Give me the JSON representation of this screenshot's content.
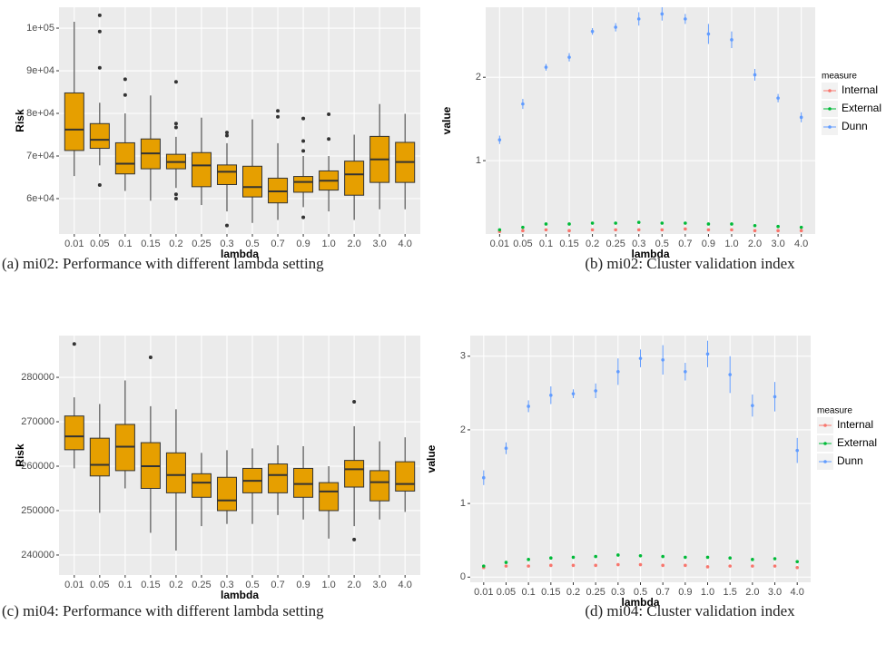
{
  "chart_data": [
    {
      "type": "box",
      "caption": "(a) mi02: Performance with different lambda setting",
      "x_label": "lambda",
      "y_label": "Risk",
      "color": "#e69f00",
      "categories": [
        "0.01",
        "0.05",
        "0.1",
        "0.15",
        "0.2",
        "0.25",
        "0.3",
        "0.5",
        "0.7",
        "0.9",
        "1.0",
        "2.0",
        "3.0",
        "4.0"
      ],
      "ylim": [
        51700,
        104900
      ],
      "yticks": [
        {
          "value": 60000,
          "label": "6e+04"
        },
        {
          "value": 70000,
          "label": "7e+04"
        },
        {
          "value": 80000,
          "label": "8e+04"
        },
        {
          "value": 90000,
          "label": "9e+04"
        },
        {
          "value": 100000,
          "label": "1e+05"
        }
      ],
      "boxes": [
        {
          "whislo": 65300,
          "q1": 71300,
          "med": 76200,
          "q3": 84800,
          "whishi": 101500,
          "fliers": []
        },
        {
          "whislo": 67800,
          "q1": 71800,
          "med": 73800,
          "q3": 77600,
          "whishi": 82500,
          "fliers": [
            103000,
            99200,
            90700,
            63200
          ]
        },
        {
          "whislo": 61800,
          "q1": 65800,
          "med": 68200,
          "q3": 73100,
          "whishi": 80000,
          "fliers": [
            88000,
            84300
          ]
        },
        {
          "whislo": 59500,
          "q1": 67000,
          "med": 70600,
          "q3": 74000,
          "whishi": 84200,
          "fliers": []
        },
        {
          "whislo": 62500,
          "q1": 67000,
          "med": 68600,
          "q3": 70400,
          "whishi": 74500,
          "fliers": [
            87400,
            77600,
            76700,
            61000,
            60000
          ]
        },
        {
          "whislo": 58500,
          "q1": 62800,
          "med": 67800,
          "q3": 70800,
          "whishi": 79000,
          "fliers": []
        },
        {
          "whislo": 57000,
          "q1": 63300,
          "med": 66300,
          "q3": 67900,
          "whishi": 73000,
          "fliers": [
            75500,
            74800,
            53700
          ]
        },
        {
          "whislo": 54300,
          "q1": 60400,
          "med": 62700,
          "q3": 67600,
          "whishi": 78600,
          "fliers": []
        },
        {
          "whislo": 55000,
          "q1": 59000,
          "med": 61700,
          "q3": 64800,
          "whishi": 73000,
          "fliers": [
            80600,
            79200
          ]
        },
        {
          "whislo": 58000,
          "q1": 61500,
          "med": 63900,
          "q3": 65200,
          "whishi": 70000,
          "fliers": [
            78800,
            73500,
            71200,
            55600
          ]
        },
        {
          "whislo": 57000,
          "q1": 62000,
          "med": 64200,
          "q3": 66500,
          "whishi": 70000,
          "fliers": [
            79800,
            74000
          ]
        },
        {
          "whislo": 55000,
          "q1": 60800,
          "med": 65700,
          "q3": 68800,
          "whishi": 75000,
          "fliers": []
        },
        {
          "whislo": 57500,
          "q1": 63800,
          "med": 69200,
          "q3": 74600,
          "whishi": 82200,
          "fliers": []
        },
        {
          "whislo": 57500,
          "q1": 63800,
          "med": 68600,
          "q3": 73200,
          "whishi": 79900,
          "fliers": []
        }
      ]
    },
    {
      "type": "errorbar",
      "caption": "(b) mi02: Cluster validation index",
      "x_label": "lambda",
      "y_label": "value",
      "legend_title": "measure",
      "categories": [
        "0.01",
        "0.05",
        "0.1",
        "0.15",
        "0.2",
        "0.25",
        "0.3",
        "0.5",
        "0.7",
        "0.9",
        "1.0",
        "2.0",
        "3.0",
        "4.0"
      ],
      "ylim": [
        0.12,
        2.84
      ],
      "yticks": [
        1,
        2
      ],
      "series": [
        {
          "name": "Internal",
          "color": "#f8766d",
          "values": [
            0.15,
            0.16,
            0.17,
            0.16,
            0.17,
            0.17,
            0.17,
            0.17,
            0.18,
            0.17,
            0.17,
            0.16,
            0.16,
            0.16
          ],
          "errors": [
            0.005,
            0.005,
            0.005,
            0.005,
            0.005,
            0.005,
            0.005,
            0.005,
            0.005,
            0.005,
            0.005,
            0.005,
            0.005,
            0.005
          ]
        },
        {
          "name": "External",
          "color": "#00ba38",
          "values": [
            0.17,
            0.2,
            0.24,
            0.24,
            0.25,
            0.25,
            0.26,
            0.25,
            0.25,
            0.24,
            0.24,
            0.22,
            0.21,
            0.2
          ],
          "errors": [
            0.01,
            0.01,
            0.01,
            0.01,
            0.01,
            0.01,
            0.01,
            0.01,
            0.01,
            0.01,
            0.01,
            0.01,
            0.01,
            0.01
          ]
        },
        {
          "name": "Dunn",
          "color": "#619cff",
          "values": [
            1.25,
            1.68,
            2.12,
            2.24,
            2.55,
            2.6,
            2.7,
            2.76,
            2.7,
            2.52,
            2.45,
            2.03,
            1.75,
            1.52
          ],
          "errors": [
            0.05,
            0.06,
            0.04,
            0.05,
            0.04,
            0.05,
            0.08,
            0.08,
            0.06,
            0.12,
            0.1,
            0.07,
            0.05,
            0.06
          ]
        }
      ]
    },
    {
      "type": "box",
      "caption": "(c) mi04: Performance with different lambda setting",
      "x_label": "lambda",
      "y_label": "Risk",
      "color": "#e69f00",
      "categories": [
        "0.01",
        "0.05",
        "0.1",
        "0.15",
        "0.2",
        "0.25",
        "0.3",
        "0.5",
        "0.7",
        "0.9",
        "1.0",
        "2.0",
        "3.0",
        "4.0"
      ],
      "ylim": [
        235500,
        289400
      ],
      "yticks": [
        240000,
        250000,
        260000,
        270000,
        280000
      ],
      "boxes": [
        {
          "whislo": 259500,
          "q1": 263700,
          "med": 266700,
          "q3": 271300,
          "whishi": 275500,
          "fliers": [
            287500
          ]
        },
        {
          "whislo": 249500,
          "q1": 257800,
          "med": 260300,
          "q3": 266300,
          "whishi": 274000,
          "fliers": []
        },
        {
          "whislo": 255000,
          "q1": 259000,
          "med": 264400,
          "q3": 269400,
          "whishi": 279300,
          "fliers": []
        },
        {
          "whislo": 245000,
          "q1": 255000,
          "med": 260000,
          "q3": 265300,
          "whishi": 273500,
          "fliers": [
            284500
          ]
        },
        {
          "whislo": 241000,
          "q1": 254000,
          "med": 258000,
          "q3": 263000,
          "whishi": 272800,
          "fliers": []
        },
        {
          "whislo": 246500,
          "q1": 253000,
          "med": 256300,
          "q3": 258300,
          "whishi": 263000,
          "fliers": []
        },
        {
          "whislo": 247000,
          "q1": 250000,
          "med": 252300,
          "q3": 257500,
          "whishi": 263600,
          "fliers": []
        },
        {
          "whislo": 247000,
          "q1": 254000,
          "med": 256700,
          "q3": 259500,
          "whishi": 264000,
          "fliers": []
        },
        {
          "whislo": 249000,
          "q1": 254000,
          "med": 258000,
          "q3": 260500,
          "whishi": 264700,
          "fliers": []
        },
        {
          "whislo": 248000,
          "q1": 253000,
          "med": 256000,
          "q3": 259500,
          "whishi": 264500,
          "fliers": []
        },
        {
          "whislo": 243700,
          "q1": 250000,
          "med": 254300,
          "q3": 256300,
          "whishi": 260000,
          "fliers": []
        },
        {
          "whislo": 246500,
          "q1": 255300,
          "med": 259300,
          "q3": 261300,
          "whishi": 269000,
          "fliers": [
            274500,
            243500
          ]
        },
        {
          "whislo": 248000,
          "q1": 252200,
          "med": 256400,
          "q3": 259000,
          "whishi": 265600,
          "fliers": []
        },
        {
          "whislo": 249700,
          "q1": 254400,
          "med": 256000,
          "q3": 261000,
          "whishi": 266500,
          "fliers": []
        }
      ]
    },
    {
      "type": "errorbar",
      "caption": "(d) mi04: Cluster validation index",
      "x_label": "lambda",
      "y_label": "value",
      "legend_title": "measure",
      "categories": [
        "0.01",
        "0.05",
        "0.1",
        "0.15",
        "0.2",
        "0.25",
        "0.3",
        "0.5",
        "0.7",
        "0.9",
        "1.0",
        "1.5",
        "2.0",
        "3.0",
        "4.0"
      ],
      "ylim": [
        -0.07,
        3.28
      ],
      "yticks": [
        0,
        1,
        2,
        3
      ],
      "series": [
        {
          "name": "Internal",
          "color": "#f8766d",
          "values": [
            0.13,
            0.15,
            0.15,
            0.16,
            0.16,
            0.16,
            0.17,
            0.17,
            0.16,
            0.16,
            0.14,
            0.15,
            0.15,
            0.15,
            0.13
          ],
          "errors": [
            0.005,
            0.005,
            0.005,
            0.005,
            0.005,
            0.005,
            0.005,
            0.005,
            0.005,
            0.005,
            0.005,
            0.005,
            0.005,
            0.005,
            0.005
          ]
        },
        {
          "name": "External",
          "color": "#00ba38",
          "values": [
            0.15,
            0.2,
            0.24,
            0.26,
            0.27,
            0.28,
            0.3,
            0.29,
            0.28,
            0.27,
            0.27,
            0.26,
            0.24,
            0.25,
            0.21
          ],
          "errors": [
            0.01,
            0.01,
            0.01,
            0.01,
            0.01,
            0.01,
            0.01,
            0.01,
            0.01,
            0.01,
            0.01,
            0.01,
            0.01,
            0.01,
            0.01
          ]
        },
        {
          "name": "Dunn",
          "color": "#619cff",
          "values": [
            1.35,
            1.75,
            2.32,
            2.47,
            2.49,
            2.53,
            2.79,
            2.97,
            2.95,
            2.79,
            3.03,
            2.75,
            2.33,
            2.45,
            1.72
          ],
          "errors": [
            0.1,
            0.08,
            0.08,
            0.12,
            0.06,
            0.1,
            0.18,
            0.12,
            0.2,
            0.12,
            0.18,
            0.25,
            0.15,
            0.2,
            0.17
          ]
        }
      ]
    }
  ]
}
